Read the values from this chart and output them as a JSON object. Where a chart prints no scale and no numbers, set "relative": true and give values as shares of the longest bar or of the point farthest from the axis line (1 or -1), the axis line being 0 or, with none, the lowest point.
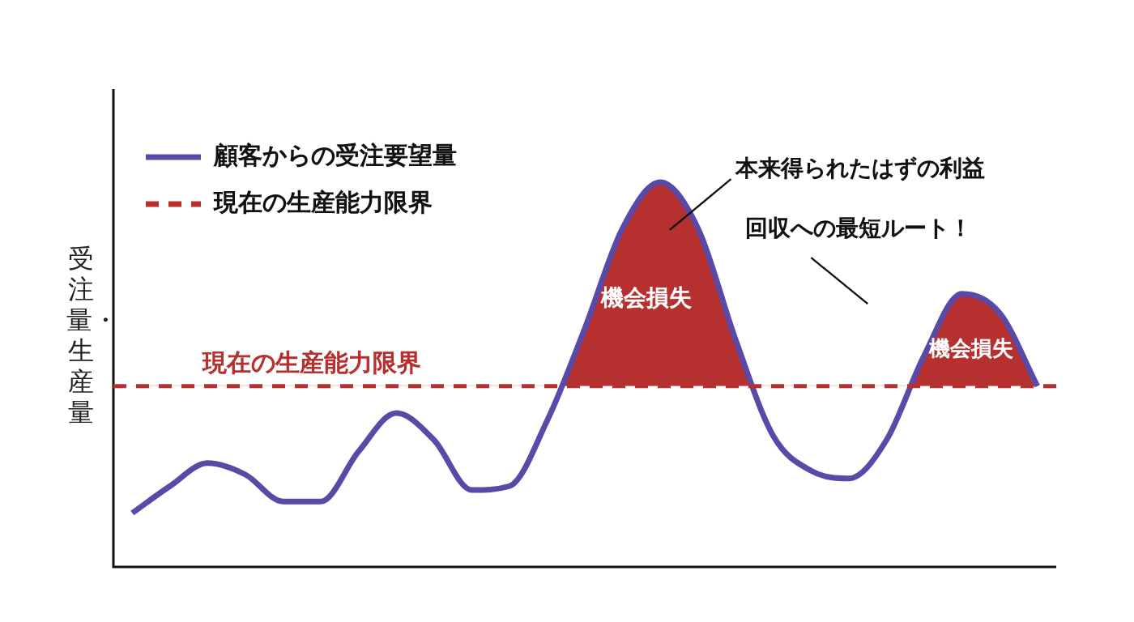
{
  "chart_data": {
    "type": "line",
    "ylabel": "受注量・生産量",
    "relative": true,
    "legend": "top left",
    "grid": false,
    "marker": "none",
    "line_style": "solid",
    "categories": [
      null,
      null,
      null,
      null,
      null,
      null,
      null,
      null,
      null,
      null,
      null,
      null,
      null,
      null,
      null,
      null,
      null,
      null,
      null,
      null,
      null,
      null,
      null,
      null,
      null
    ],
    "series": [
      {
        "name": "顧客からの受注要望量",
        "color": "#5a4aa8",
        "values": [
          0.14,
          0.21,
          0.27,
          0.24,
          0.17,
          0.17,
          0.3,
          0.4,
          0.33,
          0.2,
          0.21,
          0.38,
          0.62,
          0.88,
          1.0,
          0.88,
          0.59,
          0.34,
          0.25,
          0.23,
          0.33,
          0.55,
          0.71,
          0.66,
          0.47
        ]
      }
    ],
    "ref_lines": [
      {
        "axis": "y",
        "value": 0.47,
        "label": "現在の生産能力限界",
        "color": "#b5302f",
        "line_style": "dashed"
      }
    ],
    "annotations": [
      "本来得られたはずの利益",
      "回収への最短ルート！",
      "機会損失",
      "機会損失"
    ]
  }
}
